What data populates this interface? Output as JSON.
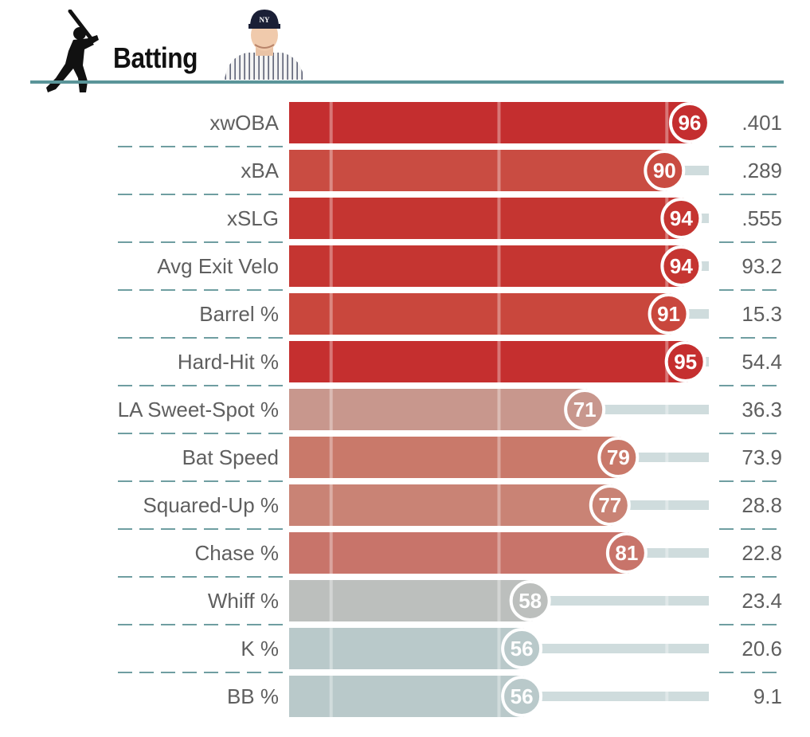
{
  "header": {
    "title": "Batting",
    "icon": "batter-silhouette-icon",
    "photo": "player-headshot"
  },
  "colors": {
    "accent_rule": "#5a9599",
    "track": "#cfdcdd",
    "divider": "#6f9ea1"
  },
  "chart_data": {
    "type": "bar",
    "title": "Batting",
    "orientation": "horizontal",
    "xlim": [
      0,
      100
    ],
    "reference_lines": [
      10,
      50,
      90
    ],
    "categories": [
      "xwOBA",
      "xBA",
      "xSLG",
      "Avg Exit Velo",
      "Barrel %",
      "Hard-Hit %",
      "LA Sweet-Spot %",
      "Bat Speed",
      "Squared-Up %",
      "Chase %",
      "Whiff %",
      "K %",
      "BB %"
    ],
    "percentiles": [
      96,
      90,
      94,
      94,
      91,
      95,
      71,
      79,
      77,
      81,
      58,
      56,
      56
    ],
    "values": [
      ".401",
      ".289",
      ".555",
      "93.2",
      "15.3",
      "54.4",
      "36.3",
      "73.9",
      "28.8",
      "22.8",
      "23.4",
      "20.6",
      "9.1"
    ],
    "bar_colors": [
      "#c42e2f",
      "#c94c42",
      "#c53531",
      "#c53531",
      "#c9473d",
      "#c52f2f",
      "#c8978d",
      "#c9796a",
      "#c98375",
      "#c8746a",
      "#bcbfbd",
      "#b9c9ca",
      "#b9c9ca"
    ]
  }
}
